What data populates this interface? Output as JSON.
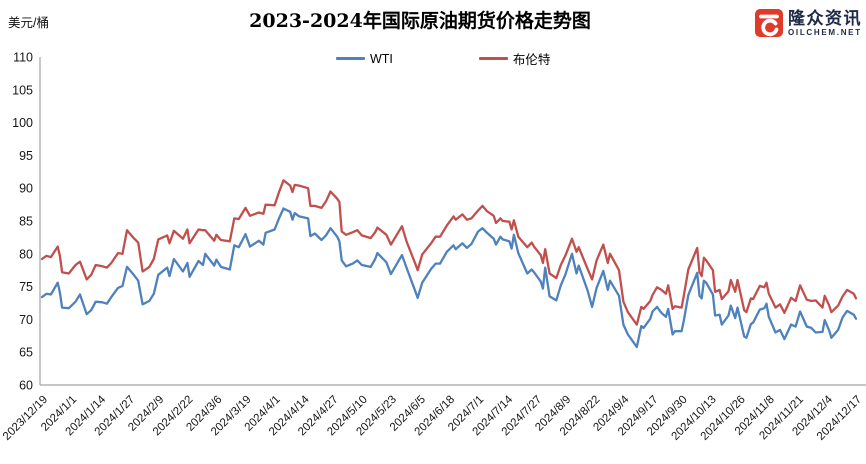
{
  "header": {
    "title": "2023-2024年国际原油期货价格走势图",
    "y_axis_unit": "美元/桶"
  },
  "logo": {
    "brand_cn": "隆众资讯",
    "brand_en": "OILCHEM.NET",
    "icon_color": "#E03A2B",
    "text_color": "#1F2A4A"
  },
  "legend": [
    {
      "label": "WTI",
      "color": "#4F81BD"
    },
    {
      "label": "布伦特",
      "color": "#C0504D"
    }
  ],
  "chart_data": {
    "type": "line",
    "title": "2023-2024年国际原油期货价格走势图",
    "xlabel": "",
    "ylabel": "美元/桶",
    "ylim": [
      60,
      110
    ],
    "y_ticks": [
      60,
      65,
      70,
      75,
      80,
      85,
      90,
      95,
      100,
      105,
      110
    ],
    "grid": false,
    "legend_position": "top-center",
    "x_tick_interval_days": 13,
    "x_tick_labels": [
      "2023/12/19",
      "2024/1/1",
      "2024/1/14",
      "2024/1/27",
      "2024/2/9",
      "2024/2/22",
      "2024/3/6",
      "2024/3/19",
      "2024/4/1",
      "2024/4/14",
      "2024/4/27",
      "2024/5/10",
      "2024/5/23",
      "2024/6/5",
      "2024/6/18",
      "2024/7/1",
      "2024/7/14",
      "2024/7/27",
      "2024/8/9",
      "2024/8/22",
      "2024/9/4",
      "2024/9/17",
      "2024/9/30",
      "2024/10/13",
      "2024/10/26",
      "2024/11/8",
      "2024/11/21",
      "2024/12/4",
      "2024/12/17"
    ],
    "days": [
      0,
      2,
      4,
      7,
      8,
      9,
      12,
      15,
      17,
      20,
      22,
      24,
      27,
      29,
      31,
      34,
      36,
      38,
      41,
      43,
      45,
      48,
      50,
      52,
      56,
      57,
      59,
      63,
      65,
      66,
      70,
      72,
      73,
      77,
      78,
      80,
      84,
      86,
      88,
      91,
      93,
      97,
      99,
      100,
      104,
      106,
      108,
      111,
      112,
      113,
      115,
      119,
      120,
      122,
      125,
      127,
      129,
      132,
      133,
      134,
      136,
      139,
      141,
      143,
      147,
      149,
      150,
      154,
      156,
      161,
      163,
      167,
      168,
      170,
      174,
      176,
      178,
      181,
      184,
      185,
      188,
      190,
      192,
      195,
      197,
      199,
      202,
      203,
      205,
      206,
      209,
      210,
      211,
      213,
      217,
      219,
      220,
      223,
      224,
      225,
      227,
      230,
      232,
      234,
      237,
      239,
      240,
      244,
      246,
      248,
      251,
      253,
      254,
      258,
      260,
      262,
      266,
      268,
      269,
      272,
      273,
      275,
      277,
      279,
      280,
      282,
      283,
      286,
      287,
      289,
      293,
      294,
      295,
      296,
      297,
      300,
      301,
      303,
      304,
      307,
      308,
      310,
      311,
      314,
      315,
      317,
      318,
      321,
      323,
      324,
      325,
      328,
      330,
      332,
      335,
      337,
      339,
      342,
      344,
      346,
      349,
      350,
      352,
      353,
      356,
      358,
      360,
      363,
      364
    ],
    "series": [
      {
        "name": "WTI",
        "color": "#4F81BD",
        "values": [
          73.4,
          73.9,
          73.8,
          75.6,
          74.1,
          71.8,
          71.7,
          72.7,
          73.8,
          70.8,
          71.4,
          72.7,
          72.6,
          72.4,
          73.4,
          74.8,
          75.1,
          78.0,
          76.8,
          75.9,
          72.3,
          72.8,
          73.9,
          76.8,
          77.9,
          76.6,
          79.2,
          77.3,
          78.6,
          76.5,
          78.9,
          78.3,
          80.0,
          78.2,
          79.1,
          78.0,
          77.6,
          81.3,
          81.0,
          83.0,
          81.1,
          82.0,
          81.4,
          83.2,
          83.7,
          85.4,
          86.9,
          86.4,
          85.2,
          86.2,
          85.7,
          85.4,
          82.7,
          83.1,
          82.1,
          82.8,
          83.9,
          82.6,
          81.9,
          79.0,
          78.1,
          78.5,
          79.0,
          78.3,
          78.0,
          79.2,
          80.1,
          78.7,
          76.9,
          79.8,
          77.9,
          74.2,
          73.3,
          75.6,
          77.7,
          78.5,
          78.5,
          80.3,
          81.3,
          80.7,
          81.6,
          80.9,
          81.5,
          83.4,
          83.9,
          83.2,
          82.3,
          81.4,
          82.6,
          82.2,
          81.9,
          80.8,
          82.9,
          80.1,
          77.0,
          77.6,
          77.2,
          75.8,
          74.7,
          77.9,
          73.5,
          72.9,
          75.2,
          76.8,
          80.0,
          77.0,
          78.2,
          74.4,
          71.9,
          74.8,
          77.4,
          74.5,
          75.9,
          73.6,
          69.2,
          67.7,
          65.8,
          69.0,
          68.7,
          70.1,
          71.2,
          71.9,
          71.0,
          70.4,
          71.6,
          67.7,
          68.2,
          68.2,
          69.8,
          73.7,
          77.1,
          73.6,
          73.2,
          75.9,
          75.6,
          73.8,
          70.6,
          70.7,
          69.2,
          70.6,
          72.1,
          70.2,
          71.8,
          67.4,
          67.2,
          69.3,
          69.5,
          71.5,
          71.7,
          72.4,
          70.4,
          68.0,
          68.4,
          67.0,
          69.2,
          68.9,
          71.2,
          68.9,
          68.7,
          68.0,
          68.1,
          69.9,
          68.3,
          67.2,
          68.4,
          70.3,
          71.3,
          70.7,
          70.1
        ]
      },
      {
        "name": "布伦特",
        "color": "#C0504D",
        "values": [
          79.2,
          79.7,
          79.5,
          81.1,
          79.7,
          77.2,
          77.0,
          78.3,
          78.8,
          76.1,
          76.8,
          78.3,
          78.1,
          77.9,
          78.6,
          80.1,
          80.0,
          83.6,
          82.4,
          81.7,
          77.3,
          78.0,
          79.2,
          82.2,
          82.8,
          81.6,
          83.5,
          82.3,
          83.7,
          81.6,
          83.7,
          83.6,
          83.6,
          82.0,
          82.9,
          82.1,
          81.9,
          85.4,
          85.3,
          87.0,
          85.8,
          86.3,
          86.1,
          87.5,
          87.4,
          89.4,
          91.2,
          90.4,
          89.4,
          90.5,
          90.4,
          90.0,
          87.3,
          87.3,
          87.0,
          88.0,
          89.5,
          88.4,
          87.9,
          83.4,
          82.9,
          83.3,
          83.6,
          82.8,
          82.4,
          83.3,
          84.0,
          82.9,
          81.4,
          84.2,
          81.9,
          78.4,
          77.5,
          79.9,
          81.6,
          82.6,
          82.6,
          84.3,
          85.7,
          85.2,
          86.0,
          85.2,
          85.4,
          86.6,
          87.3,
          86.5,
          85.8,
          84.7,
          85.4,
          85.0,
          84.9,
          83.7,
          85.1,
          82.6,
          81.0,
          81.7,
          81.1,
          79.8,
          78.6,
          80.7,
          77.0,
          76.3,
          78.3,
          79.7,
          82.3,
          80.3,
          81.0,
          77.7,
          76.1,
          79.0,
          81.4,
          78.6,
          80.0,
          77.5,
          72.7,
          71.1,
          69.2,
          71.9,
          71.6,
          72.8,
          73.7,
          74.9,
          74.5,
          73.9,
          75.2,
          71.6,
          72.0,
          71.8,
          73.6,
          77.6,
          80.9,
          77.2,
          76.6,
          79.4,
          79.0,
          77.5,
          74.2,
          74.5,
          73.1,
          74.3,
          76.0,
          74.2,
          76.0,
          71.4,
          71.1,
          73.2,
          73.1,
          75.1,
          74.9,
          75.6,
          73.9,
          71.8,
          72.3,
          71.0,
          73.3,
          72.8,
          75.2,
          73.0,
          72.8,
          72.9,
          71.8,
          73.6,
          72.1,
          71.1,
          72.1,
          73.5,
          74.5,
          73.9,
          73.2
        ]
      }
    ]
  }
}
